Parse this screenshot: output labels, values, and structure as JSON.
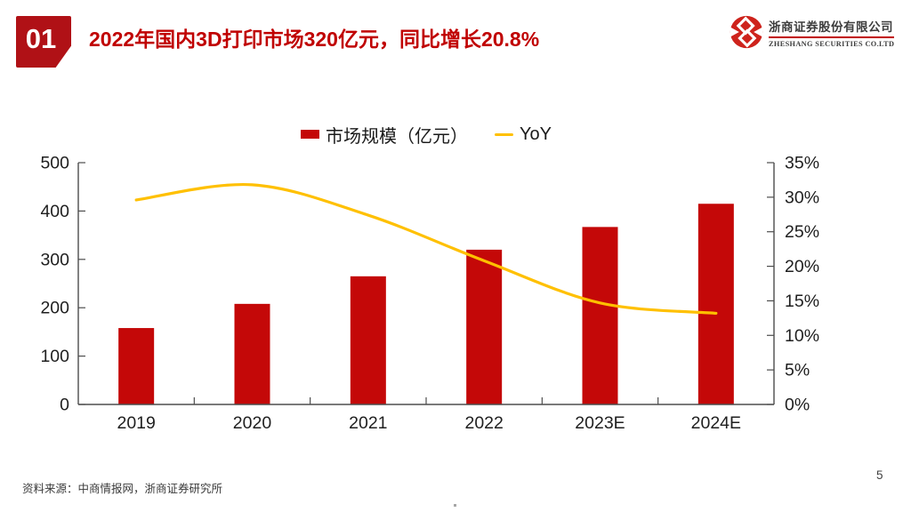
{
  "header": {
    "section_number": "01",
    "title": "2022年国内3D打印市场320亿元，同比增长20.8%",
    "logo": {
      "company_cn": "浙商证券股份有限公司",
      "company_en": "ZHESHANG SECURITIES CO.LTD"
    }
  },
  "chart_data": {
    "type": "bar",
    "categories": [
      "2019",
      "2020",
      "2021",
      "2022",
      "2023E",
      "2024E"
    ],
    "series": [
      {
        "name": "市场规模（亿元）",
        "type": "bar",
        "axis": "left",
        "values": [
          158,
          208,
          265,
          320,
          367,
          415
        ],
        "color": "#c40808"
      },
      {
        "name": "YoY",
        "type": "line",
        "axis": "right",
        "values": [
          29.6,
          31.8,
          27.4,
          20.8,
          14.7,
          13.2
        ],
        "color": "#ffc000"
      }
    ],
    "left_axis": {
      "min": 0,
      "max": 500,
      "step": 100,
      "tick_labels": [
        "0",
        "100",
        "200",
        "300",
        "400",
        "500"
      ]
    },
    "right_axis": {
      "min": 0,
      "max": 35,
      "step": 5,
      "tick_labels": [
        "0%",
        "5%",
        "10%",
        "15%",
        "20%",
        "25%",
        "30%",
        "35%"
      ]
    },
    "grid": false,
    "legend_position": "top-center",
    "axis_color": "#4d4d4d",
    "tick_label_color": "#1f1f1f"
  },
  "footer": {
    "source": "资料来源：中商情报网，浙商证券研究所",
    "page_number": "5"
  }
}
